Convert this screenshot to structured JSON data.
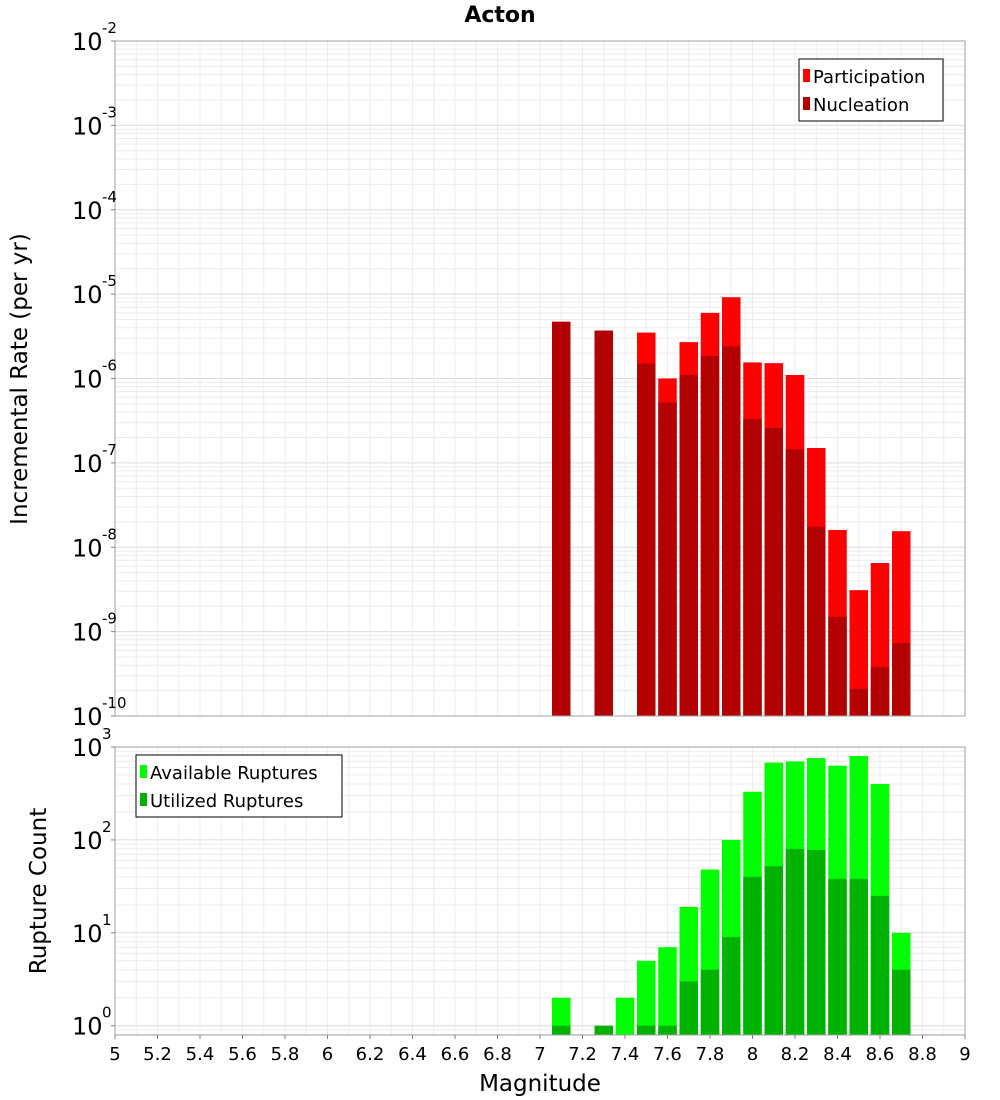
{
  "chart_data": [
    {
      "type": "bar",
      "title": "Acton",
      "ylabel": "Incremental Rate (per yr)",
      "yscale": "log",
      "ylim_exponent": [
        -10,
        -2
      ],
      "ytick_base": "10",
      "ytick_exponents": [
        "-2",
        "-3",
        "-4",
        "-5",
        "-6",
        "-7",
        "-8",
        "-9",
        "-10"
      ],
      "legend_position": "top-right",
      "x": [
        7.1,
        7.3,
        7.5,
        7.6,
        7.7,
        7.8,
        7.9,
        8.0,
        8.1,
        8.2,
        8.3,
        8.4,
        8.5,
        8.6,
        8.7
      ],
      "series": [
        {
          "name": "Participation",
          "color": "#ff0000",
          "values": [
            4.7e-06,
            3.7e-06,
            3.5e-06,
            1e-06,
            2.7e-06,
            6e-06,
            9.2e-06,
            1.55e-06,
            1.52e-06,
            1.1e-06,
            1.5e-07,
            1.6e-08,
            3.1e-09,
            6.5e-09,
            1.55e-08
          ]
        },
        {
          "name": "Nucleation",
          "color": "#b30000",
          "values": [
            4.7e-06,
            3.7e-06,
            1.5e-06,
            5.2e-07,
            1.1e-06,
            1.85e-06,
            2.4e-06,
            3.3e-07,
            2.6e-07,
            1.45e-07,
            1.75e-08,
            1.5e-09,
            2.1e-10,
            3.8e-10,
            7.3e-10
          ]
        }
      ]
    },
    {
      "type": "bar",
      "title": "",
      "xlabel": "Magnitude",
      "ylabel": "Rupture Count",
      "yscale": "log",
      "ylim_exponent": [
        -0.1,
        3
      ],
      "ytick_base": "10",
      "ytick_exponents": [
        "3",
        "2",
        "1",
        "0"
      ],
      "legend_position": "top-left",
      "xlim": [
        5,
        9
      ],
      "xticks": [
        "5",
        "5.2",
        "5.4",
        "5.6",
        "5.8",
        "6",
        "6.2",
        "6.4",
        "6.6",
        "6.8",
        "7",
        "7.2",
        "7.4",
        "7.6",
        "7.8",
        "8",
        "8.2",
        "8.4",
        "8.6",
        "8.8",
        "9"
      ],
      "x": [
        7.1,
        7.3,
        7.4,
        7.5,
        7.6,
        7.7,
        7.8,
        7.9,
        8.0,
        8.1,
        8.2,
        8.3,
        8.4,
        8.5,
        8.6,
        8.7
      ],
      "series": [
        {
          "name": "Available Ruptures",
          "color": "#00ff00",
          "values": [
            2,
            0,
            2,
            5,
            7,
            19,
            48,
            100,
            330,
            680,
            700,
            760,
            630,
            800,
            400,
            10
          ]
        },
        {
          "name": "Utilized Ruptures",
          "color": "#00b300",
          "values": [
            1,
            1,
            0,
            1,
            1,
            3,
            4,
            9,
            40,
            52,
            80,
            78,
            38,
            38,
            25,
            4
          ]
        }
      ]
    }
  ]
}
